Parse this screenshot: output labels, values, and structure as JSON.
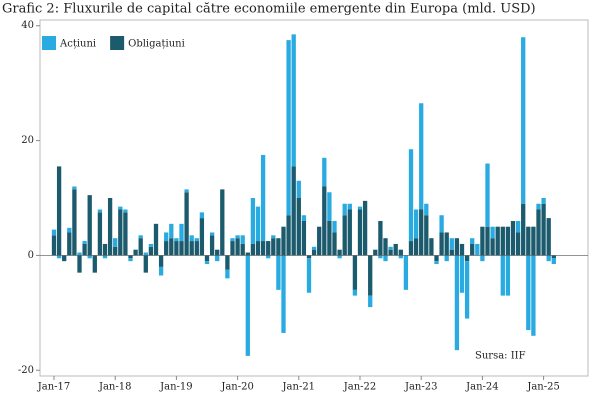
{
  "chart_data": {
    "type": "stacked_bar",
    "title": "Grafic 2: Fluxurile de capital către economiile emergente din Europa (mld. USD)",
    "source": "Sursa: IIF",
    "legend": "upper left",
    "categories": [
      "Jan-17",
      null,
      null,
      null,
      null,
      null,
      null,
      null,
      null,
      null,
      null,
      null,
      "Jan-18",
      null,
      null,
      null,
      null,
      null,
      null,
      null,
      null,
      null,
      null,
      null,
      "Jan-19",
      null,
      null,
      null,
      null,
      null,
      null,
      null,
      null,
      null,
      null,
      null,
      "Jan-20",
      null,
      null,
      null,
      null,
      null,
      null,
      null,
      null,
      null,
      null,
      null,
      "Jan-21",
      null,
      null,
      null,
      null,
      null,
      null,
      null,
      null,
      null,
      null,
      null,
      "Jan-22",
      null,
      null,
      null,
      null,
      null,
      null,
      null,
      null,
      null,
      null,
      null,
      "Jan-23",
      null,
      null,
      null,
      null,
      null,
      null,
      null,
      null,
      null,
      null,
      null,
      "Jan-24",
      null,
      null,
      null,
      null,
      null,
      null,
      null,
      null,
      null,
      null,
      null,
      "Jan-25",
      null,
      null
    ],
    "series": [
      {
        "name": "Acțiuni",
        "color": "#29abe2",
        "values": [
          1,
          -0.5,
          0,
          0.8,
          0.5,
          0.5,
          0.5,
          -0.5,
          0,
          0.5,
          -0.5,
          0,
          1.5,
          0.5,
          0.5,
          -0.5,
          0,
          0.5,
          0.5,
          0.5,
          0,
          -1.5,
          1.5,
          2.5,
          0.5,
          3,
          0.5,
          1,
          0.5,
          1,
          -0.5,
          0.5,
          -1,
          0,
          -1.5,
          0.5,
          0.5,
          1.5,
          -17.5,
          8,
          6,
          15,
          -0.5,
          0.5,
          -6,
          -13.5,
          30.5,
          23,
          3,
          1,
          -6,
          0.5,
          0,
          5,
          5,
          2,
          -0.5,
          2,
          1,
          -1,
          0.5,
          0,
          -2,
          0,
          -0.5,
          -1,
          0.5,
          0,
          -0.5,
          -6,
          16,
          5,
          18.5,
          2,
          0,
          -0.5,
          3,
          -1,
          2,
          -16.5,
          -6.5,
          -10,
          1,
          2,
          -1,
          11,
          2,
          0,
          -7,
          -7,
          0,
          2,
          29,
          -13,
          -14,
          1,
          1,
          -1,
          -1
        ]
      },
      {
        "name": "Obligațiuni",
        "color": "#1c5a6d",
        "values": [
          3.5,
          15.5,
          -1,
          4,
          11.5,
          -3,
          2,
          10.5,
          -3,
          7.5,
          2,
          10,
          1.5,
          8,
          7.5,
          -0.5,
          1,
          3,
          -3,
          1.5,
          5.5,
          -2,
          2.5,
          3,
          2.5,
          2.5,
          11,
          2.5,
          2.5,
          6.5,
          -1,
          3.5,
          1,
          11.5,
          -2.5,
          2.5,
          3,
          2,
          0.5,
          2,
          2.5,
          2.5,
          2.5,
          3,
          3,
          5,
          7,
          15.5,
          10,
          6,
          -0.5,
          1,
          5,
          12,
          6,
          4,
          1,
          7,
          8,
          -6,
          8,
          9.5,
          -7,
          1,
          6,
          3,
          1,
          2,
          1,
          0,
          2.5,
          3,
          8,
          7,
          3,
          -1,
          4,
          4,
          1,
          3,
          2,
          -1,
          2,
          0,
          5,
          5,
          3,
          5,
          5,
          5,
          6,
          4,
          9,
          5,
          5,
          8,
          9,
          6.5,
          -0.5
        ]
      }
    ],
    "ylim": [
      -21,
      41
    ],
    "yticks": [
      -20,
      0,
      20,
      40
    ]
  }
}
